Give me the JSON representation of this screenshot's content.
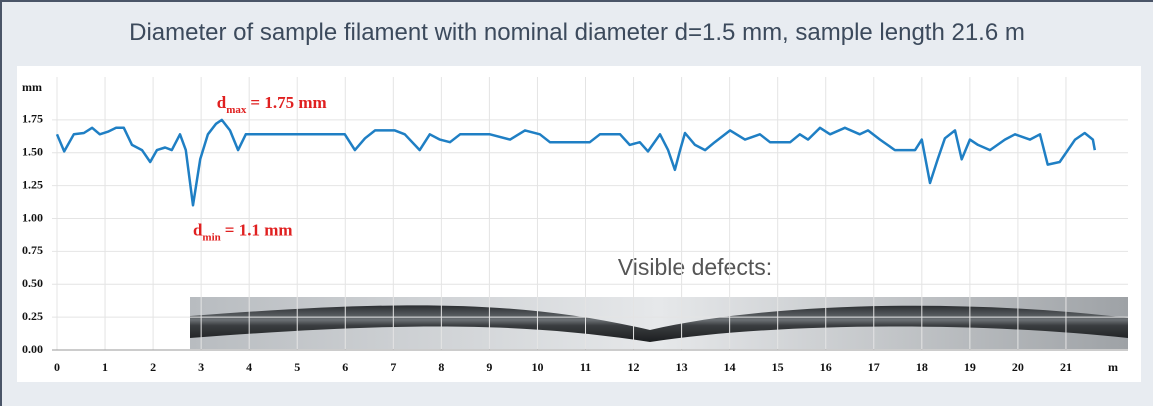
{
  "chart_data": {
    "type": "line",
    "title": "Diameter of sample filament with nominal diameter d=1.5 mm, sample length 21.6 m",
    "y_label": "mm",
    "x_label": "m",
    "note": "Visible defects:",
    "annotations": [
      {
        "text": "d",
        "subscript": "max",
        "suffix": "= 1.75 mm",
        "x": 3.43,
        "y": 1.75
      },
      {
        "text": "d",
        "subscript": "min",
        "suffix": "= 1.1 mm",
        "x": 2.83,
        "y": 1.1
      }
    ],
    "xlim": [
      0,
      22
    ],
    "xticks": [
      0,
      1,
      2,
      3,
      4,
      5,
      6,
      7,
      8,
      9,
      10,
      11,
      12,
      13,
      14,
      15,
      16,
      17,
      18,
      19,
      20,
      21
    ],
    "ylim": [
      0,
      2
    ],
    "yticks": [
      {
        "value": 0,
        "label": "0.00"
      },
      0.25,
      {
        "value": 0.5,
        "label": "0.50"
      },
      0.75,
      {
        "value": 1,
        "label": "1.00"
      },
      1.25,
      {
        "value": 1.5,
        "label": "1.50"
      },
      1.75
    ],
    "grid": true,
    "color": "#1f7fc4",
    "x": [
      0,
      0.15,
      0.35,
      0.56,
      0.73,
      0.89,
      1.06,
      1.23,
      1.39,
      1.56,
      1.77,
      1.94,
      2.08,
      2.25,
      2.39,
      2.56,
      2.68,
      2.83,
      2.98,
      3.14,
      3.31,
      3.43,
      3.6,
      3.77,
      3.93,
      4.22,
      5.06,
      5.99,
      6.2,
      6.41,
      6.62,
      7.03,
      7.24,
      7.55,
      7.76,
      7.97,
      8.18,
      8.39,
      9.01,
      9.43,
      9.74,
      10.05,
      10.26,
      11.09,
      11.3,
      11.72,
      11.92,
      12.13,
      12.3,
      12.55,
      12.72,
      12.86,
      12.97,
      13.07,
      13.28,
      13.49,
      13.69,
      14.01,
      14.32,
      14.63,
      14.84,
      15.26,
      15.46,
      15.63,
      15.88,
      16.09,
      16.4,
      16.71,
      16.88,
      17.13,
      17.44,
      17.86,
      18.0,
      18.17,
      18.33,
      18.48,
      18.69,
      18.83,
      19.0,
      19.17,
      19.42,
      19.73,
      19.94,
      20.25,
      20.46,
      20.62,
      20.87,
      21.19,
      21.39,
      21.56,
      21.6
    ],
    "values": [
      1.64,
      1.51,
      1.64,
      1.65,
      1.69,
      1.64,
      1.66,
      1.69,
      1.69,
      1.56,
      1.52,
      1.43,
      1.52,
      1.54,
      1.52,
      1.64,
      1.52,
      1.1,
      1.45,
      1.64,
      1.72,
      1.75,
      1.67,
      1.52,
      1.64,
      1.64,
      1.64,
      1.64,
      1.52,
      1.61,
      1.67,
      1.67,
      1.64,
      1.52,
      1.64,
      1.6,
      1.58,
      1.64,
      1.64,
      1.6,
      1.67,
      1.64,
      1.58,
      1.58,
      1.64,
      1.64,
      1.56,
      1.58,
      1.51,
      1.64,
      1.52,
      1.37,
      1.52,
      1.65,
      1.56,
      1.52,
      1.58,
      1.67,
      1.6,
      1.64,
      1.58,
      1.58,
      1.64,
      1.6,
      1.69,
      1.64,
      1.69,
      1.64,
      1.67,
      1.6,
      1.52,
      1.52,
      1.6,
      1.27,
      1.45,
      1.61,
      1.67,
      1.45,
      1.6,
      1.56,
      1.52,
      1.6,
      1.64,
      1.6,
      1.64,
      1.41,
      1.43,
      1.6,
      1.65,
      1.6,
      1.52
    ]
  }
}
